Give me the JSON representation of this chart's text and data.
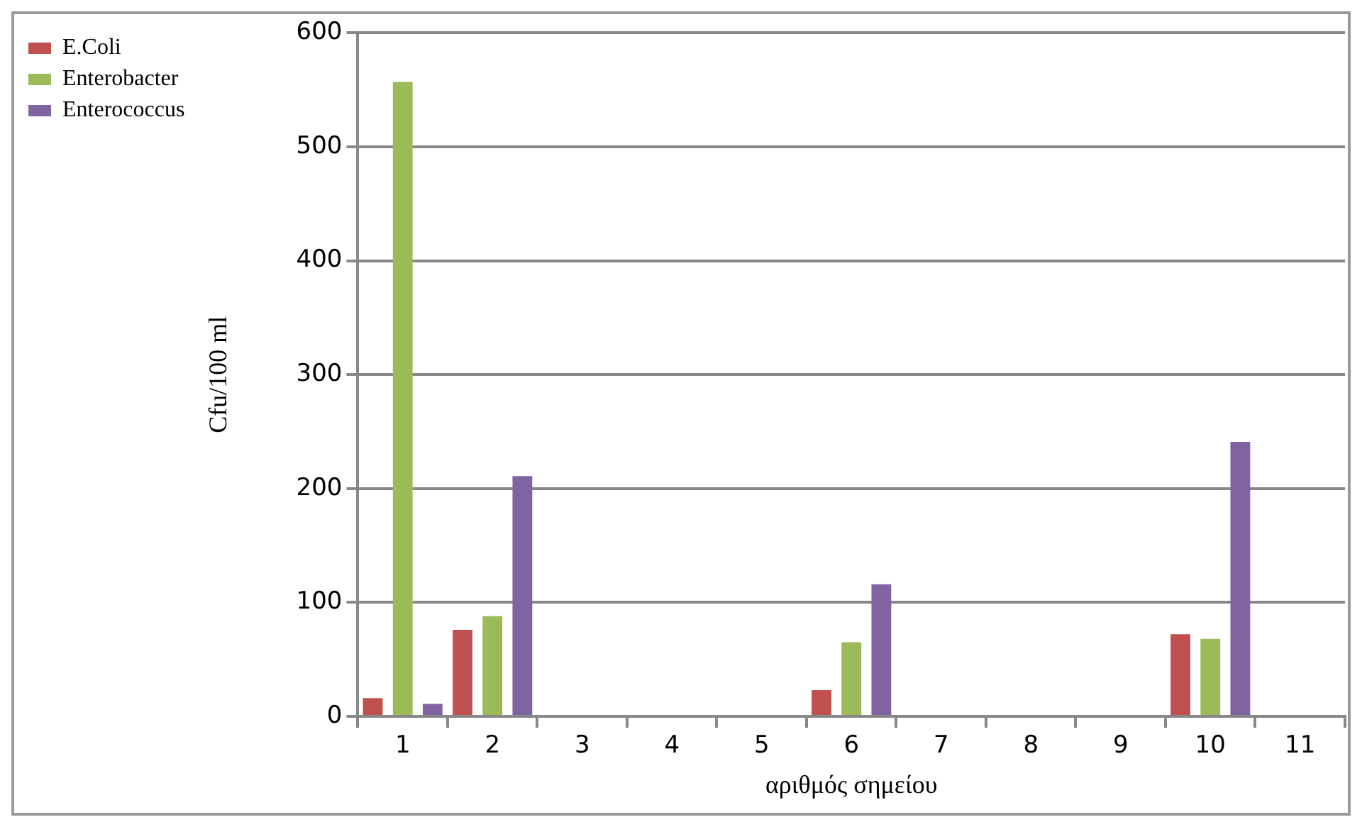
{
  "chart_data": {
    "type": "bar",
    "xlabel": "αριθμός σημείου",
    "ylabel": "Cfu/100 ml",
    "categories": [
      "1",
      "2",
      "3",
      "4",
      "5",
      "6",
      "7",
      "8",
      "9",
      "10",
      "11"
    ],
    "series": [
      {
        "name": "E.Coli",
        "color": "#c0504d",
        "values": [
          16,
          76,
          0,
          0,
          0,
          23,
          0,
          0,
          0,
          72,
          0
        ]
      },
      {
        "name": "Enterobacter",
        "color": "#9bbb59",
        "values": [
          557,
          88,
          0,
          0,
          0,
          65,
          0,
          0,
          0,
          68,
          0
        ]
      },
      {
        "name": "Enterococcus",
        "color": "#8064a2",
        "values": [
          11,
          211,
          0,
          0,
          0,
          116,
          0,
          0,
          0,
          241,
          0
        ]
      }
    ],
    "ylim": [
      0,
      600
    ],
    "yticks": [
      0,
      100,
      200,
      300,
      400,
      500,
      600
    ],
    "grid": "y",
    "legend": "top left"
  }
}
